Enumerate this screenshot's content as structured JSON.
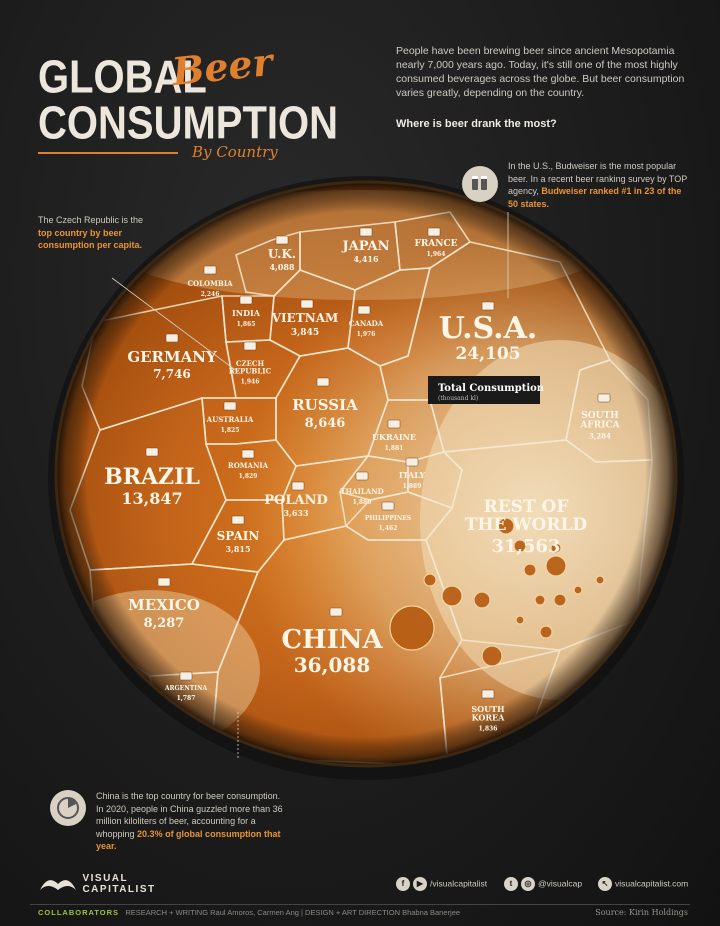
{
  "header": {
    "title_line1": "GLOBAL",
    "title_script": "Beer",
    "title_line2": "CONSUMPTION",
    "subtitle": "By Country",
    "intro": "People have been brewing beer since ancient Mesopotamia nearly 7,000 years ago. Today, it's still one of the most highly consumed beverages across the globe. But beer consumption varies greatly, depending on the country.",
    "question": "Where is beer drank the most?"
  },
  "notes": {
    "czech_pre": "The Czech Republic is the ",
    "czech_hl": "top country by beer consumption per capita.",
    "us_pre": "In the U.S., Budweiser is the most popular beer. In a recent beer ranking survey by TOP agency, ",
    "us_hl": "Budweiser ranked #1 in 23 of the 50 states.",
    "china_pre": "China is the top country for beer consumption. In 2020, people in China guzzled more than 36 million kiloliters of beer, accounting for a whopping ",
    "china_hl": "20.3% of global consumption that year."
  },
  "legend": {
    "title": "Total Consumption",
    "unit": "(thousand kl)"
  },
  "chart_data": {
    "type": "voronoi-treemap",
    "unit": "thousand kl",
    "cells": [
      {
        "name": "CHINA",
        "value": "36,088"
      },
      {
        "name": "REST OF THE WORLD",
        "value": "31,563"
      },
      {
        "name": "U.S.A.",
        "value": "24,105"
      },
      {
        "name": "BRAZIL",
        "value": "13,847"
      },
      {
        "name": "RUSSIA",
        "value": "8,646"
      },
      {
        "name": "MEXICO",
        "value": "8,287"
      },
      {
        "name": "GERMANY",
        "value": "7,746"
      },
      {
        "name": "JAPAN",
        "value": "4,416"
      },
      {
        "name": "U.K.",
        "value": "4,088"
      },
      {
        "name": "VIETNAM",
        "value": "3,845"
      },
      {
        "name": "SPAIN",
        "value": "3,815"
      },
      {
        "name": "POLAND",
        "value": "3,633"
      },
      {
        "name": "SOUTH AFRICA",
        "value": "3,284"
      },
      {
        "name": "COLOMBIA",
        "value": "2,246"
      },
      {
        "name": "FRANCE",
        "value": "1,964"
      },
      {
        "name": "CZECH REPUBLIC",
        "value": "1,946"
      },
      {
        "name": "THAILAND",
        "value": "1,880"
      },
      {
        "name": "ITALY",
        "value": "1,889"
      },
      {
        "name": "UKRAINE",
        "value": "1,881"
      },
      {
        "name": "INDIA",
        "value": "1,865"
      },
      {
        "name": "SOUTH KOREA",
        "value": "1,836"
      },
      {
        "name": "AUSTRALIA",
        "value": "1,825"
      },
      {
        "name": "ROMANIA",
        "value": "1,829"
      },
      {
        "name": "CANADA",
        "value": "1,976"
      },
      {
        "name": "ARGENTINA",
        "value": "1,787"
      },
      {
        "name": "PHILIPPINES",
        "value": "1,462"
      }
    ]
  },
  "footer": {
    "brand_line1": "VISUAL",
    "brand_line2": "CAPITALIST",
    "collab_label": "COLLABORATORS",
    "collab_text": "RESEARCH + WRITING Raul Amoros, Carmen Ang  |  DESIGN + ART DIRECTION Bhabna Banerjee",
    "fb": "/visualcapitalist",
    "tw": "@visualcap",
    "web": "visualcapitalist.com",
    "source": "Source: Kirin Holdings"
  },
  "colors": {
    "beer_dark": "#8a3a07",
    "beer_mid": "#c86a14",
    "beer_light": "#e7a24e",
    "foam": "#ecdcc0",
    "accent": "#e0802e"
  }
}
